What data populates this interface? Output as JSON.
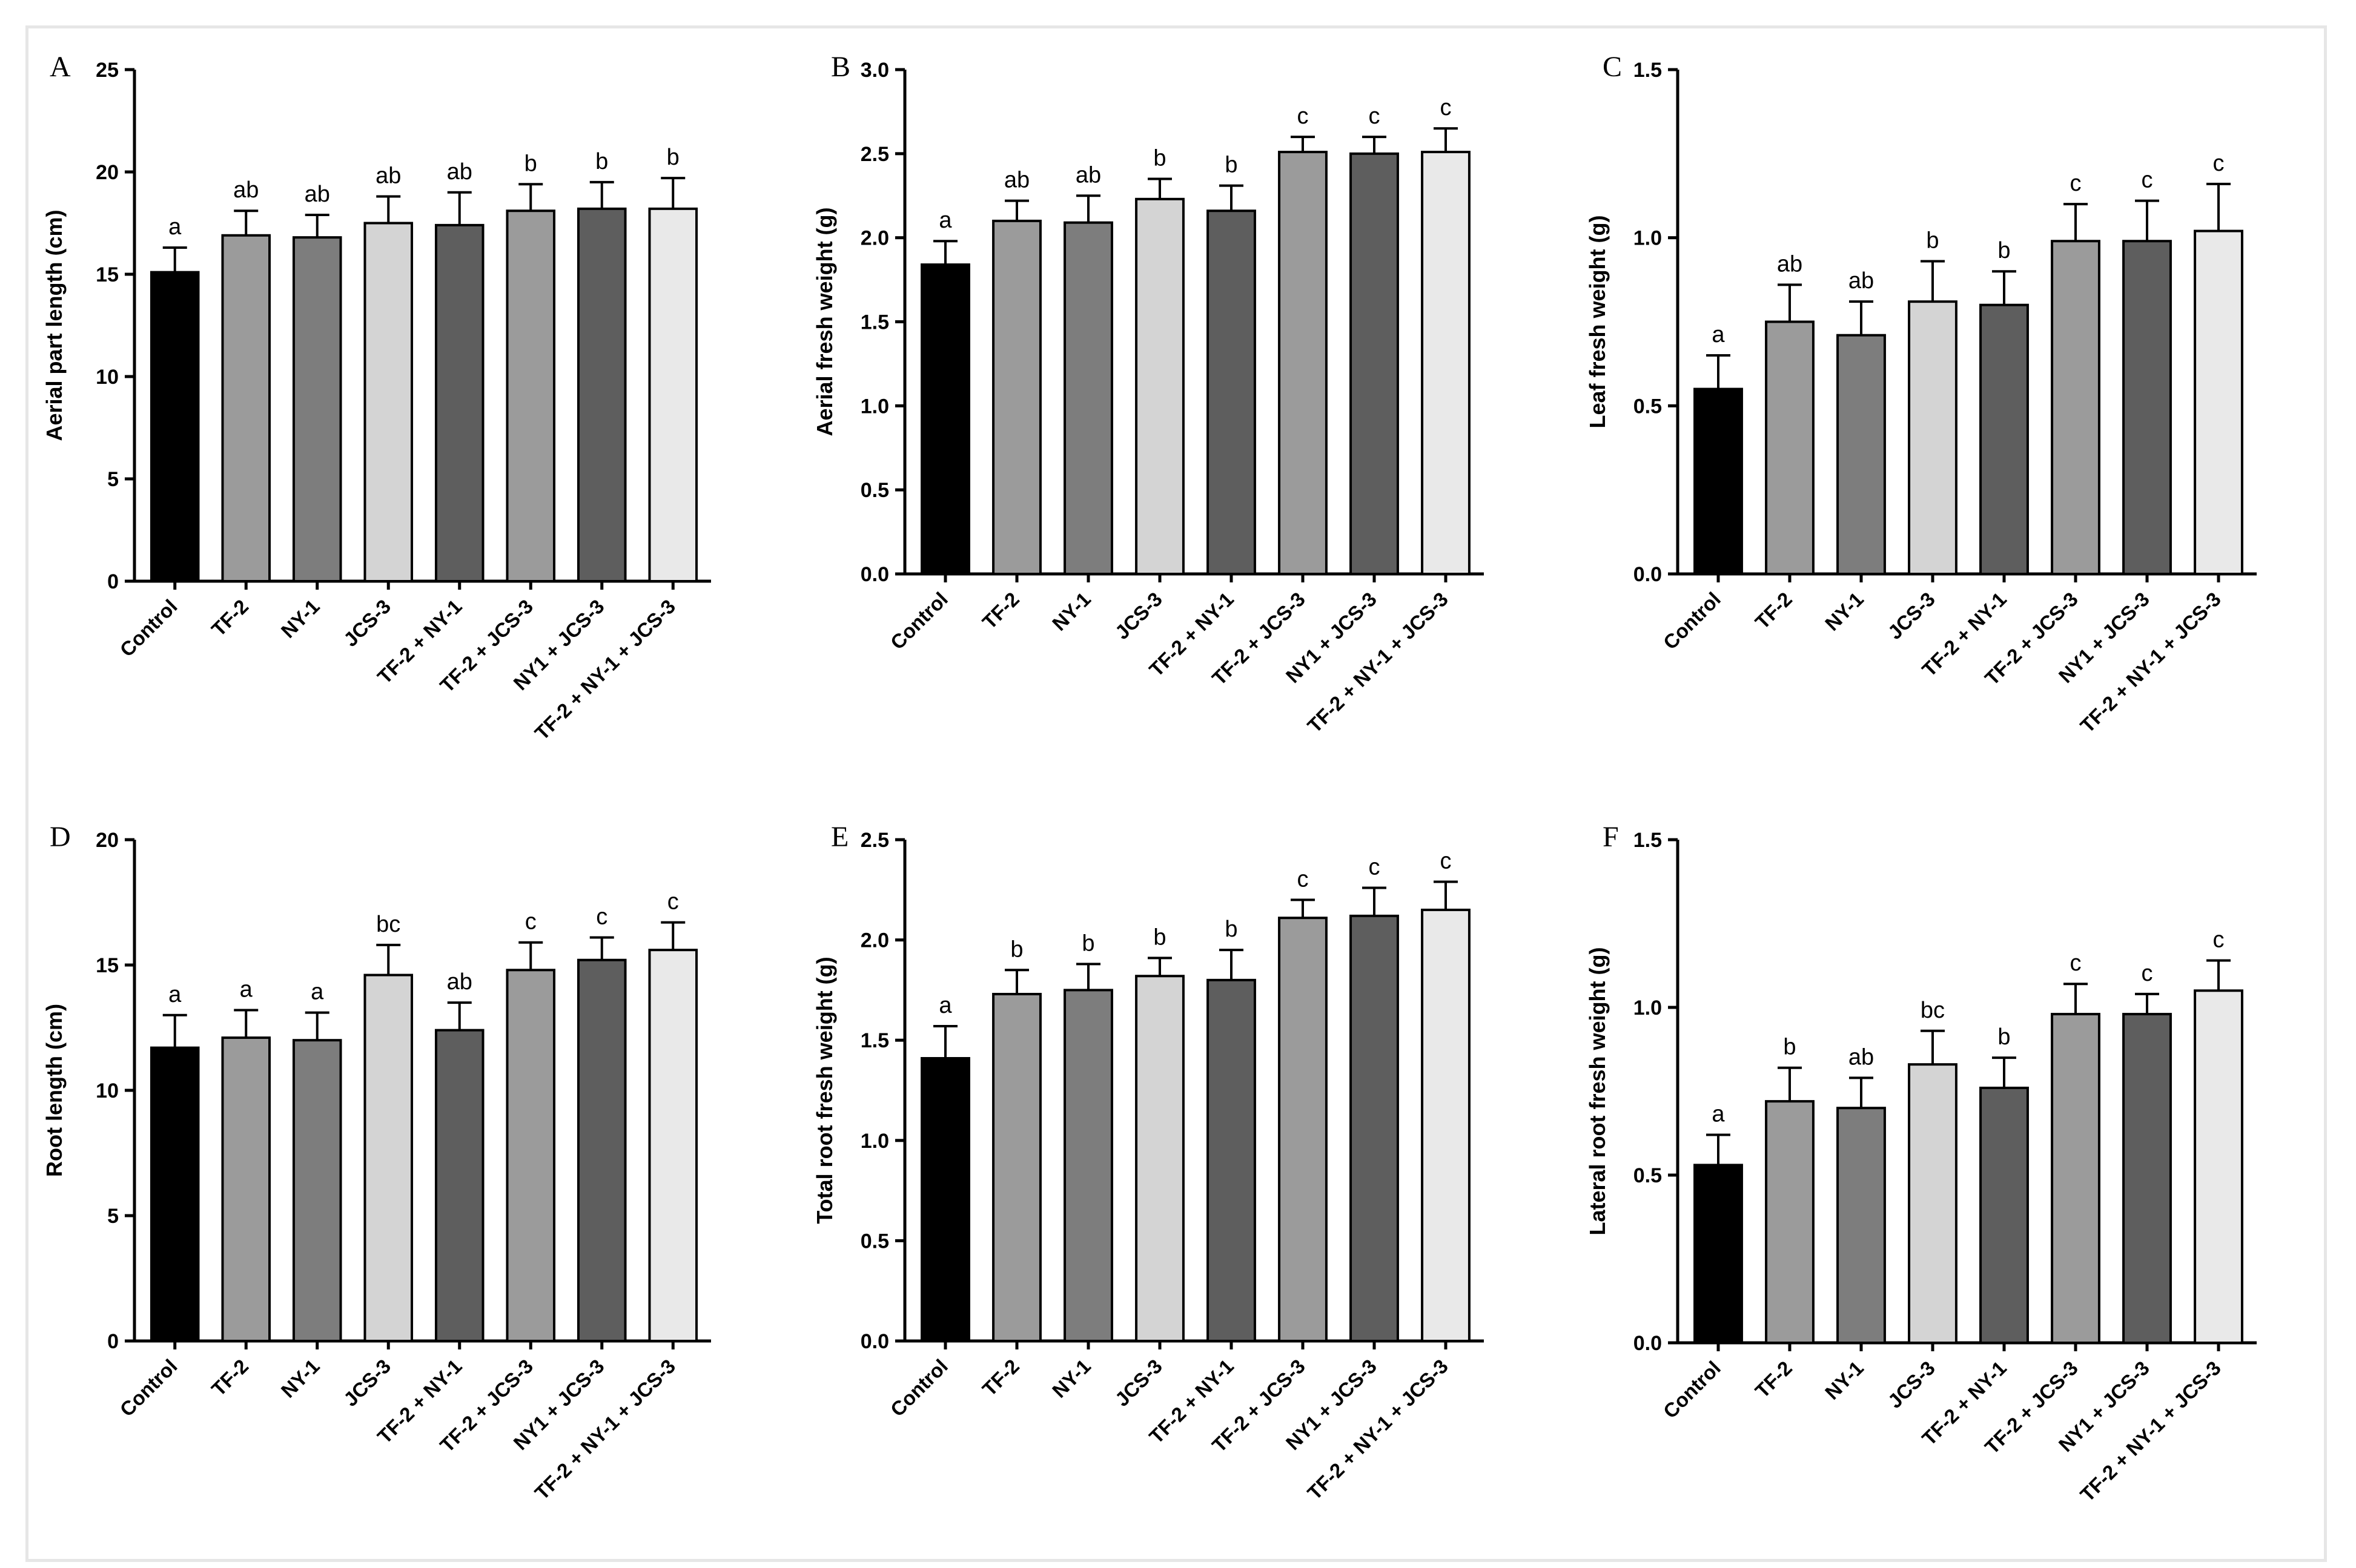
{
  "chart_data": [
    {
      "type": "bar",
      "panel": "A",
      "ylabel": "Aerial part length (cm)",
      "xlabel": "",
      "ylim": [
        0,
        25
      ],
      "yticks": [
        0,
        5,
        10,
        15,
        20,
        25
      ],
      "ytick_labels": [
        "0",
        "5",
        "10",
        "15",
        "20",
        "25"
      ],
      "categories": [
        "Control",
        "TF-2",
        "NY-1",
        "JCS-3",
        "TF-2 + NY-1",
        "TF-2 + JCS-3",
        "NY1 + JCS-3",
        "TF-2 + NY-1 + JCS-3"
      ],
      "values": [
        15.1,
        16.9,
        16.8,
        17.5,
        17.4,
        18.1,
        18.2,
        18.2
      ],
      "errors": [
        1.2,
        1.2,
        1.1,
        1.3,
        1.6,
        1.3,
        1.3,
        1.5
      ],
      "significance": [
        "a",
        "ab",
        "ab",
        "ab",
        "ab",
        "b",
        "b",
        "b"
      ]
    },
    {
      "type": "bar",
      "panel": "B",
      "ylabel": "Aerial fresh weight (g)",
      "xlabel": "",
      "ylim": [
        0,
        3.0
      ],
      "yticks": [
        0,
        0.5,
        1.0,
        1.5,
        2.0,
        2.5,
        3.0
      ],
      "ytick_labels": [
        "0.0",
        "0.5",
        "1.0",
        "1.5",
        "2.0",
        "2.5",
        "3.0"
      ],
      "categories": [
        "Control",
        "TF-2",
        "NY-1",
        "JCS-3",
        "TF-2 + NY-1",
        "TF-2 + JCS-3",
        "NY1 + JCS-3",
        "TF-2 + NY-1 + JCS-3"
      ],
      "values": [
        1.84,
        2.1,
        2.09,
        2.23,
        2.16,
        2.51,
        2.5,
        2.51
      ],
      "errors": [
        0.14,
        0.12,
        0.16,
        0.12,
        0.15,
        0.09,
        0.1,
        0.14
      ],
      "significance": [
        "a",
        "ab",
        "ab",
        "b",
        "b",
        "c",
        "c",
        "c"
      ]
    },
    {
      "type": "bar",
      "panel": "C",
      "ylabel": "Leaf fresh weight (g)",
      "xlabel": "",
      "ylim": [
        0,
        1.5
      ],
      "yticks": [
        0,
        0.5,
        1.0,
        1.5
      ],
      "ytick_labels": [
        "0.0",
        "0.5",
        "1.0",
        "1.5"
      ],
      "categories": [
        "Control",
        "TF-2",
        "NY-1",
        "JCS-3",
        "TF-2 + NY-1",
        "TF-2 + JCS-3",
        "NY1 + JCS-3",
        "TF-2 + NY-1 + JCS-3"
      ],
      "values": [
        0.55,
        0.75,
        0.71,
        0.81,
        0.8,
        0.99,
        0.99,
        1.02
      ],
      "errors": [
        0.1,
        0.11,
        0.1,
        0.12,
        0.1,
        0.11,
        0.12,
        0.14
      ],
      "significance": [
        "a",
        "ab",
        "ab",
        "b",
        "b",
        "c",
        "c",
        "c"
      ]
    },
    {
      "type": "bar",
      "panel": "D",
      "ylabel": "Root length (cm)",
      "xlabel": "",
      "ylim": [
        0,
        20
      ],
      "yticks": [
        0,
        5,
        10,
        15,
        20
      ],
      "ytick_labels": [
        "0",
        "5",
        "10",
        "15",
        "20"
      ],
      "categories": [
        "Control",
        "TF-2",
        "NY-1",
        "JCS-3",
        "TF-2 + NY-1",
        "TF-2 + JCS-3",
        "NY1 + JCS-3",
        "TF-2 + NY-1 + JCS-3"
      ],
      "values": [
        11.7,
        12.1,
        12.0,
        14.6,
        12.4,
        14.8,
        15.2,
        15.6
      ],
      "errors": [
        1.3,
        1.1,
        1.1,
        1.2,
        1.1,
        1.1,
        0.9,
        1.1
      ],
      "significance": [
        "a",
        "a",
        "a",
        "bc",
        "ab",
        "c",
        "c",
        "c"
      ]
    },
    {
      "type": "bar",
      "panel": "E",
      "ylabel": "Total root fresh weight (g)",
      "xlabel": "",
      "ylim": [
        0,
        2.5
      ],
      "yticks": [
        0,
        0.5,
        1.0,
        1.5,
        2.0,
        2.5
      ],
      "ytick_labels": [
        "0.0",
        "0.5",
        "1.0",
        "1.5",
        "2.0",
        "2.5"
      ],
      "categories": [
        "Control",
        "TF-2",
        "NY-1",
        "JCS-3",
        "TF-2 + NY-1",
        "TF-2 + JCS-3",
        "NY1 + JCS-3",
        "TF-2 + NY-1 + JCS-3"
      ],
      "values": [
        1.41,
        1.73,
        1.75,
        1.82,
        1.8,
        2.11,
        2.12,
        2.15
      ],
      "errors": [
        0.16,
        0.12,
        0.13,
        0.09,
        0.15,
        0.09,
        0.14,
        0.14
      ],
      "significance": [
        "a",
        "b",
        "b",
        "b",
        "b",
        "c",
        "c",
        "c"
      ]
    },
    {
      "type": "bar",
      "panel": "F",
      "ylabel": "Lateral root fresh weight (g)",
      "xlabel": "",
      "ylim": [
        0,
        1.5
      ],
      "yticks": [
        0,
        0.5,
        1.0,
        1.5
      ],
      "ytick_labels": [
        "0.0",
        "0.5",
        "1.0",
        "1.5"
      ],
      "categories": [
        "Control",
        "TF-2",
        "NY-1",
        "JCS-3",
        "TF-2 + NY-1",
        "TF-2 + JCS-3",
        "NY1 + JCS-3",
        "TF-2 + NY-1 + JCS-3"
      ],
      "values": [
        0.53,
        0.72,
        0.7,
        0.83,
        0.76,
        0.98,
        0.98,
        1.05
      ],
      "errors": [
        0.09,
        0.1,
        0.09,
        0.1,
        0.09,
        0.09,
        0.06,
        0.09
      ],
      "significance": [
        "a",
        "b",
        "ab",
        "bc",
        "b",
        "c",
        "c",
        "c"
      ]
    }
  ],
  "colors": {
    "bars": [
      "#000000",
      "#9b9b9b",
      "#7d7d7d",
      "#d4d4d4",
      "#5e5e5e",
      "#9b9b9b",
      "#5e5e5e",
      "#e9e9e9"
    ],
    "bar_stroke": "#000000",
    "axis": "#000000"
  }
}
